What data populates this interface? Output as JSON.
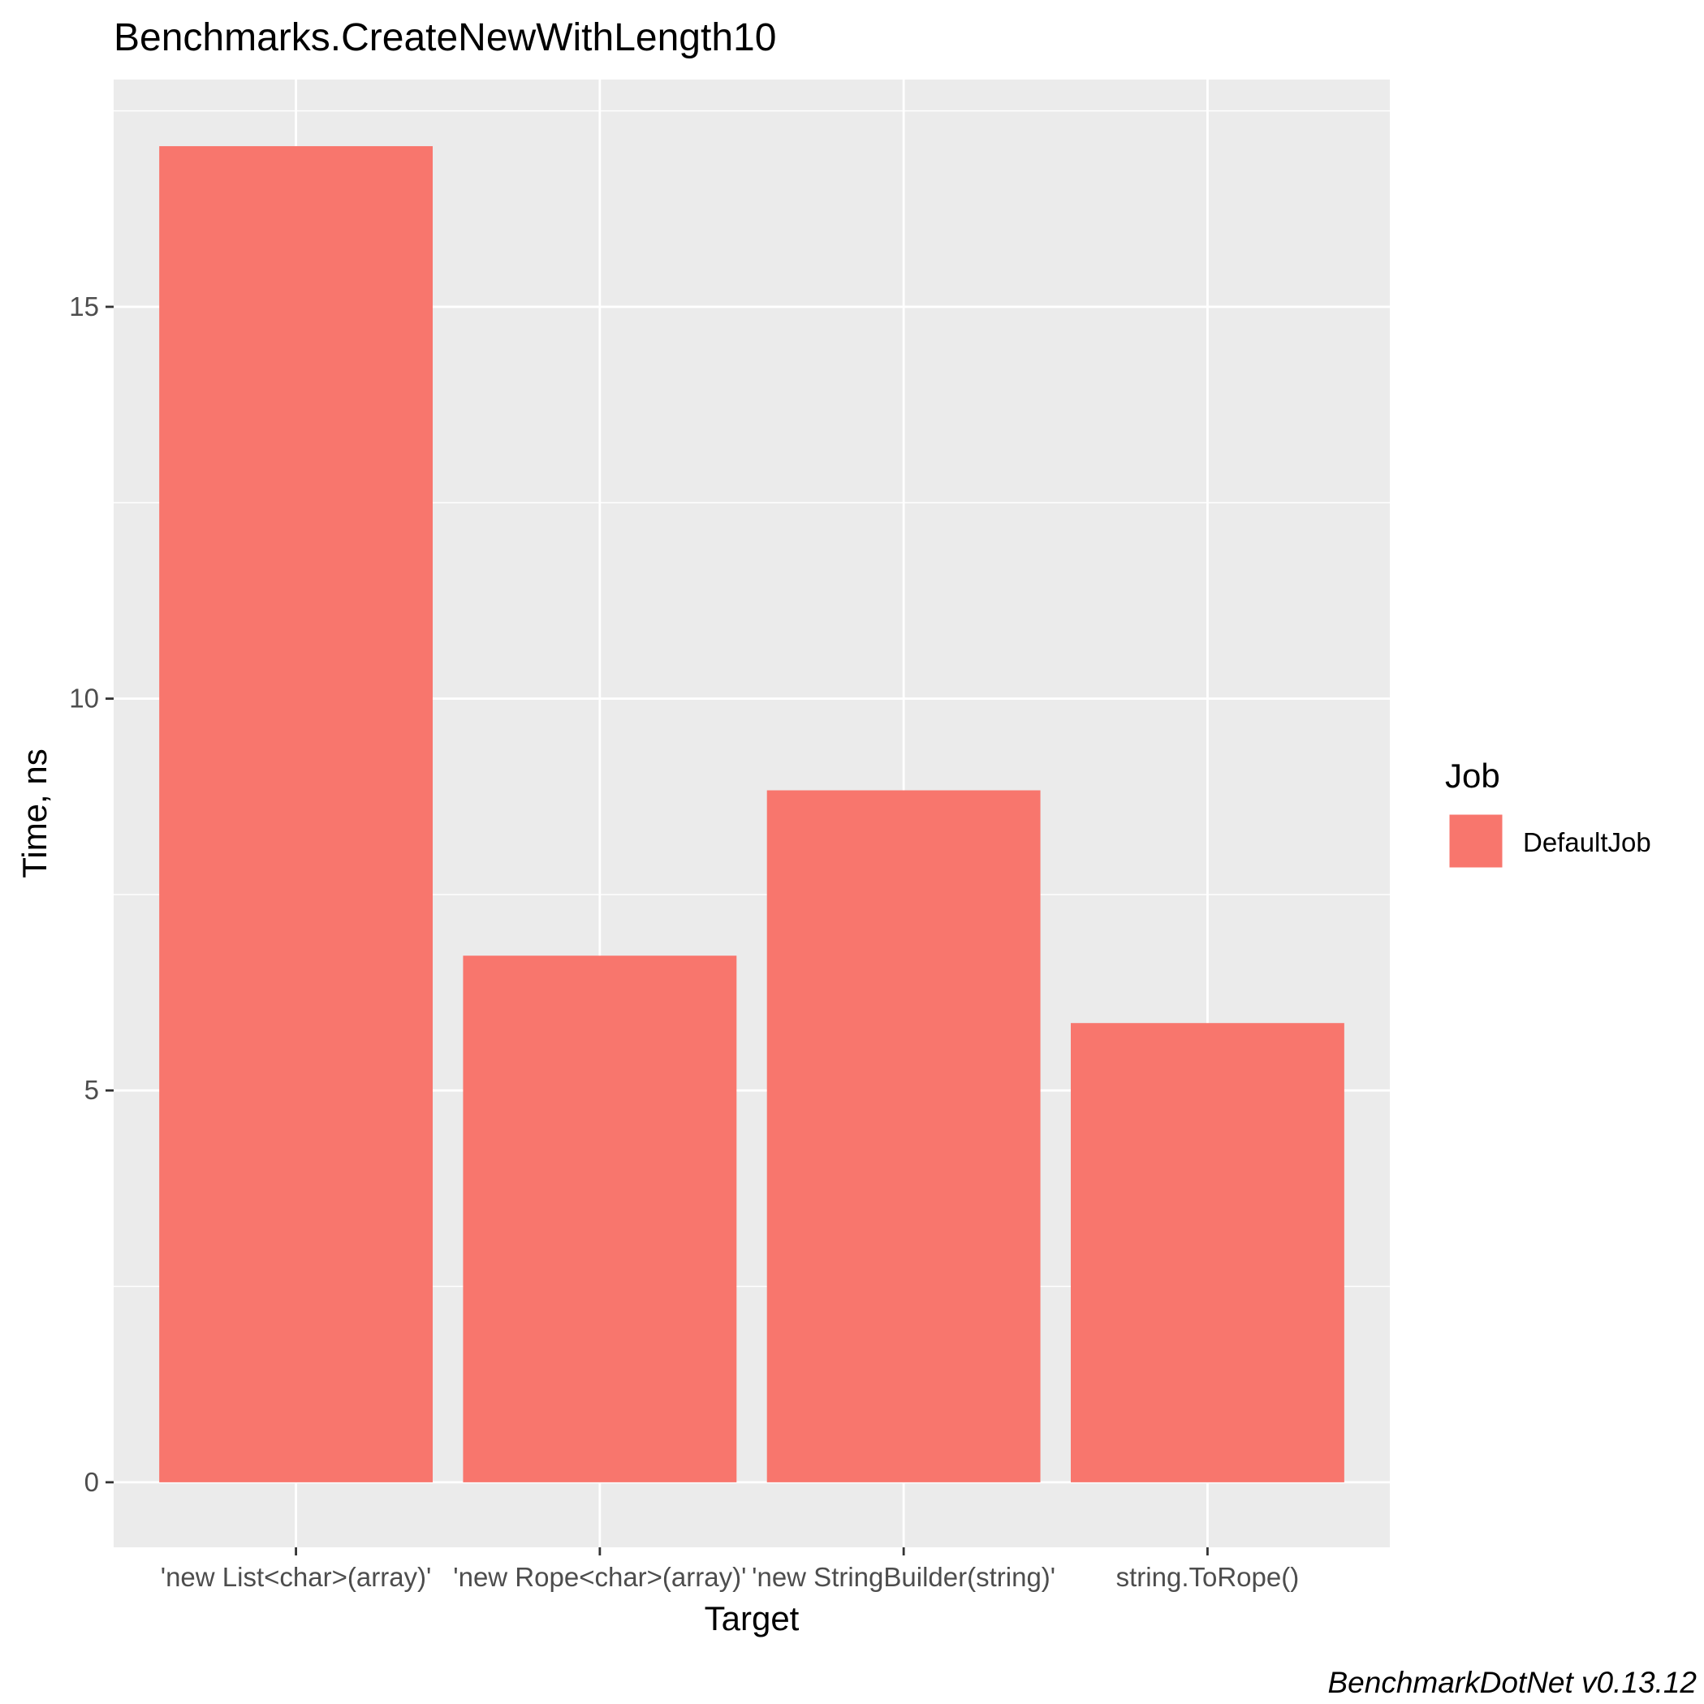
{
  "chart_data": {
    "type": "bar",
    "title": "Benchmarks.CreateNewWithLength10",
    "xlabel": "Target",
    "ylabel": "Time, ns",
    "categories": [
      "'new List<char>(array)'",
      "'new Rope<char>(array)'",
      "'new StringBuilder(string)'",
      "string.ToRope()"
    ],
    "series": [
      {
        "name": "DefaultJob",
        "values": [
          17.05,
          6.72,
          8.83,
          5.86
        ],
        "color": "#F8766D"
      }
    ],
    "ylim": [
      -0.83,
      17.9
    ],
    "yticks": [
      0,
      5,
      10,
      15
    ],
    "ytick_labels": [
      "0",
      "5",
      "10",
      "15"
    ],
    "grid": true,
    "legend": {
      "title": "Job",
      "position": "right",
      "entries": [
        "DefaultJob"
      ]
    },
    "caption": "BenchmarkDotNet v0.13.12",
    "colors": {
      "panel_background": "#EBEBEB",
      "grid": "#FFFFFF",
      "bar": "#F8766D"
    }
  }
}
